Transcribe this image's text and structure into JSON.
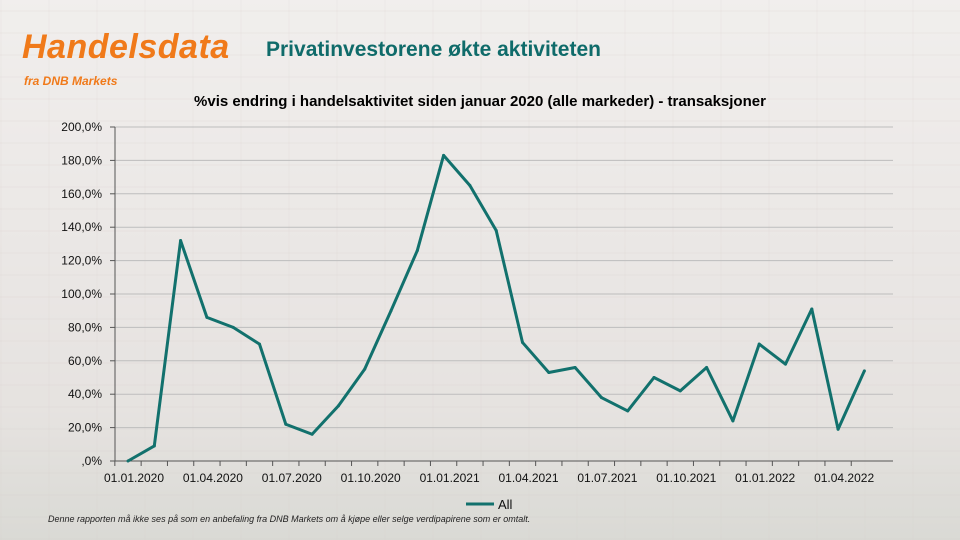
{
  "brand": {
    "name": "Handelsdata",
    "subtitle": "fra DNB Markets",
    "color": "#f07a1a"
  },
  "page_title": "Privatinvestorene økte aktiviteten",
  "disclaimer": "Denne rapporten må ikke ses på som en anbefaling fra DNB Markets om å kjøpe eller selge verdipapirene som er omtalt.",
  "chart_data": {
    "type": "line",
    "title": "%vis endring i handelsaktivitet siden januar 2020 (alle markeder) - transaksjoner",
    "xlabel": "",
    "ylabel": "",
    "x": [
      "2020-01",
      "2020-02",
      "2020-03",
      "2020-04",
      "2020-05",
      "2020-06",
      "2020-07",
      "2020-08",
      "2020-09",
      "2020-10",
      "2020-11",
      "2020-12",
      "2021-01",
      "2021-02",
      "2021-03",
      "2021-04",
      "2021-05",
      "2021-06",
      "2021-07",
      "2021-08",
      "2021-09",
      "2021-10",
      "2021-11",
      "2021-12",
      "2022-01",
      "2022-02",
      "2022-03",
      "2022-04",
      "2022-05"
    ],
    "x_tick_labels": [
      "01.01.2020",
      "01.04.2020",
      "01.07.2020",
      "01.10.2020",
      "01.01.2021",
      "01.04.2021",
      "01.07.2021",
      "01.10.2021",
      "01.01.2022",
      "01.04.2022"
    ],
    "y_tick_labels": [
      ",0%",
      "20,0%",
      "40,0%",
      "60,0%",
      "80,0%",
      "100,0%",
      "120,0%",
      "140,0%",
      "160,0%",
      "180,0%",
      "200,0%"
    ],
    "ylim": [
      0,
      200
    ],
    "grid": true,
    "legend_position": "bottom",
    "series": [
      {
        "name": "All",
        "color": "#12716d",
        "values": [
          0,
          9,
          132,
          86,
          80,
          70,
          22,
          16,
          33,
          55,
          90,
          126,
          183,
          165,
          138,
          71,
          53,
          56,
          38,
          30,
          50,
          42,
          56,
          24,
          70,
          58,
          91,
          19,
          54
        ]
      }
    ]
  }
}
